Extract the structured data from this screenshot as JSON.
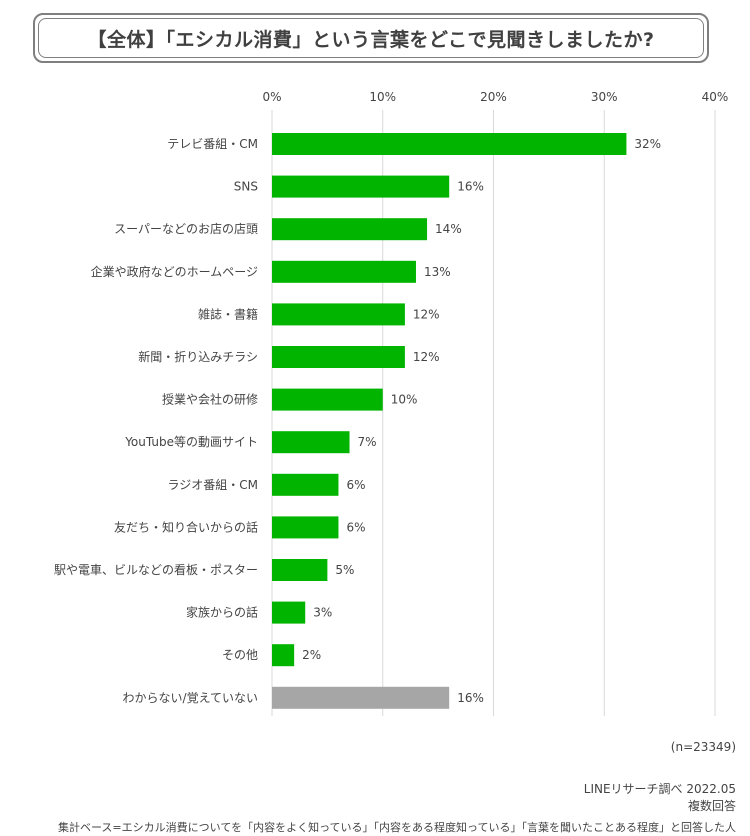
{
  "title": "【全体】「エシカル消費」という言葉をどこで見聞きしましたか?",
  "sample_size": "(n=23349)",
  "source": "LINEリサーチ調べ 2022.05",
  "answer_type": "複数回答",
  "base_note": "集計ベース=エシカル消費についてを「内容をよく知っている」「内容をある程度知っている」「言葉を聞いたことある程度」と回答した人",
  "colors": {
    "bar": "#00b400",
    "bar_other": "#a6a6a6",
    "grid": "#d9d9d9",
    "text": "#444444"
  },
  "chart_data": {
    "type": "bar",
    "orientation": "horizontal",
    "categories": [
      "テレビ番組・CM",
      "SNS",
      "スーパーなどのお店の店頭",
      "企業や政府などのホームページ",
      "雑誌・書籍",
      "新聞・折り込みチラシ",
      "授業や会社の研修",
      "YouTube等の動画サイト",
      "ラジオ番組・CM",
      "友だち・知り合いからの話",
      "駅や電車、ビルなどの看板・ポスター",
      "家族からの話",
      "その他",
      "わからない/覚えていない"
    ],
    "values": [
      32,
      16,
      14,
      13,
      12,
      12,
      10,
      7,
      6,
      6,
      5,
      3,
      2,
      16
    ],
    "value_labels": [
      "32%",
      "16%",
      "14%",
      "13%",
      "12%",
      "12%",
      "10%",
      "7%",
      "6%",
      "6%",
      "5%",
      "3%",
      "2%",
      "16%"
    ],
    "x_ticks": [
      0,
      10,
      20,
      30,
      40
    ],
    "x_tick_labels": [
      "0%",
      "10%",
      "20%",
      "30%",
      "40%"
    ],
    "xlim": [
      0,
      40
    ],
    "grid": true,
    "axis_position": "top",
    "highlight_gray": [
      "わからない/覚えていない"
    ]
  }
}
